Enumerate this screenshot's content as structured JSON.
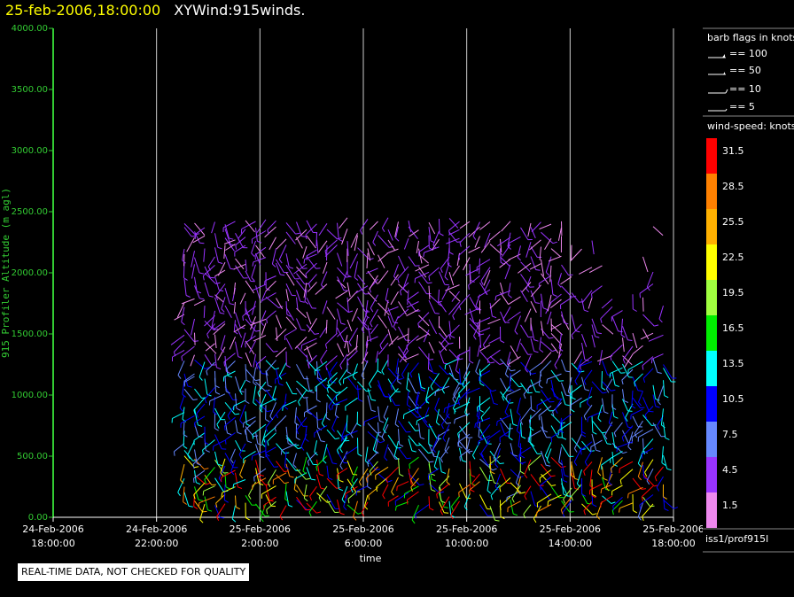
{
  "header": {
    "date": "25-feb-2006,18:00:00",
    "title": "XYWind:915winds."
  },
  "notice": "REAL-TIME DATA, NOT CHECKED FOR QUALITY",
  "legend": {
    "barb_title": "barb flags in knots",
    "barb_entries": [
      "== 100",
      "== 50",
      "== 10",
      "== 5"
    ],
    "speed_title": "wind-speed: knots",
    "speed_bins": [
      {
        "label": "31.5",
        "color": "#ff0000"
      },
      {
        "label": "28.5",
        "color": "#ff8000"
      },
      {
        "label": "25.5",
        "color": "#ffb000"
      },
      {
        "label": "22.5",
        "color": "#ffff00"
      },
      {
        "label": "19.5",
        "color": "#a0ff40"
      },
      {
        "label": "16.5",
        "color": "#00ee00"
      },
      {
        "label": "13.5",
        "color": "#00ffff"
      },
      {
        "label": "10.5",
        "color": "#0000ff"
      },
      {
        "label": "7.5",
        "color": "#6688ff"
      },
      {
        "label": "4.5",
        "color": "#9933ff"
      },
      {
        "label": "1.5",
        "color": "#ee88ee"
      }
    ],
    "source": "iss1/prof915l"
  },
  "chart_data": {
    "type": "scatter",
    "title": "XYWind:915winds.",
    "xlabel": "time",
    "ylabel": "915 Profiler Altitude (m agl)",
    "x_ticks": [
      {
        "date": "24-Feb-2006",
        "time": "18:00:00"
      },
      {
        "date": "24-Feb-2006",
        "time": "22:00:00"
      },
      {
        "date": "25-Feb-2006",
        "time": "2:00:00"
      },
      {
        "date": "25-Feb-2006",
        "time": "6:00:00"
      },
      {
        "date": "25-Feb-2006",
        "time": "10:00:00"
      },
      {
        "date": "25-Feb-2006",
        "time": "14:00:00"
      },
      {
        "date": "25-Feb-2006",
        "time": "18:00:00"
      }
    ],
    "x_range_hours": [
      0,
      24
    ],
    "y_ticks": [
      "0.00",
      "500.00",
      "1000.00",
      "1500.00",
      "2000.00",
      "2500.00",
      "3000.00",
      "3500.00",
      "4000.00"
    ],
    "ylim": [
      0,
      4000
    ],
    "grid": "vertical lines at time ticks",
    "marks": "wind barbs colored by wind speed (knots)"
  }
}
